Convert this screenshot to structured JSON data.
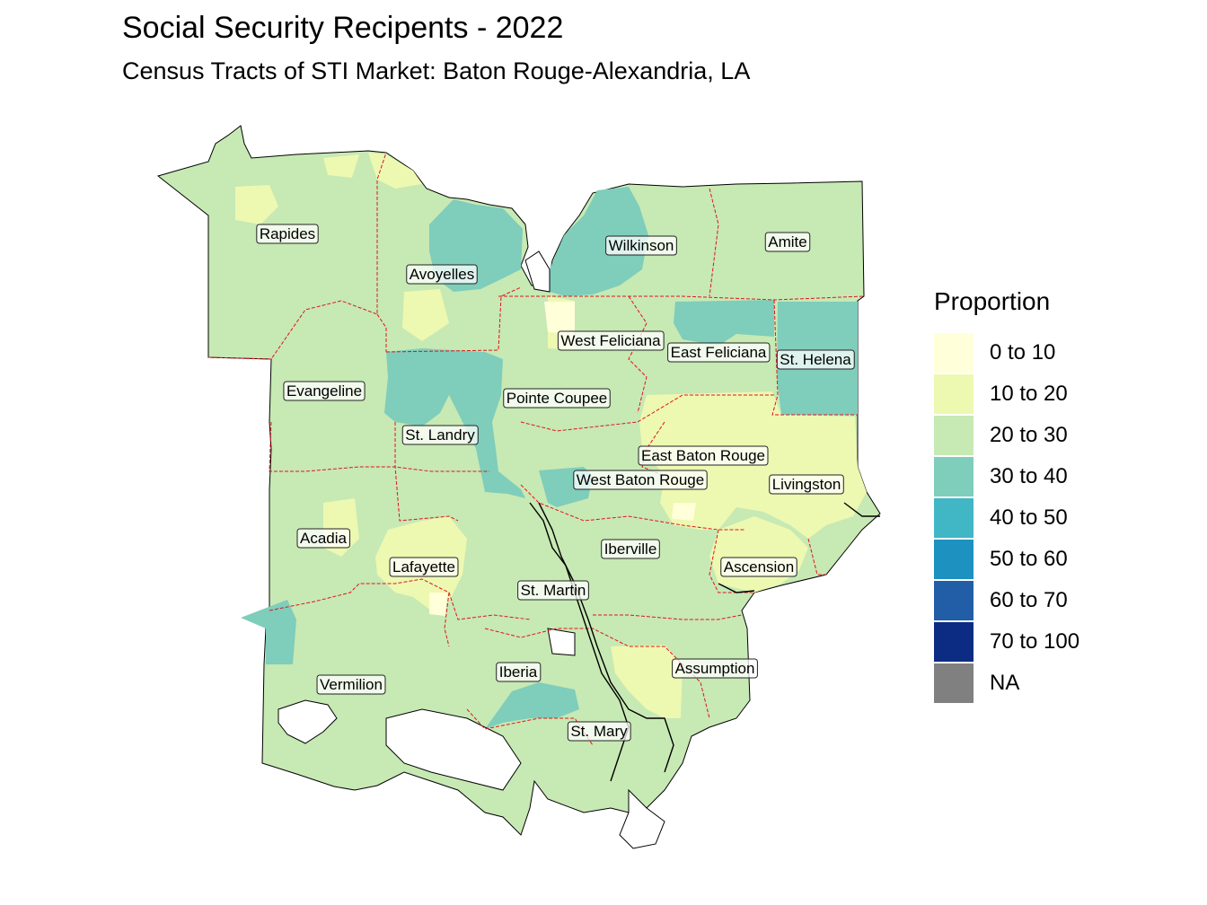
{
  "title": "Social Security Recipents - 2022",
  "subtitle": "Census Tracts of STI Market: Baton Rouge-Alexandria, LA",
  "legend": {
    "title": "Proportion",
    "items": [
      {
        "label": "0 to 10",
        "color": "#ffffd9"
      },
      {
        "label": "10 to 20",
        "color": "#edf8b1"
      },
      {
        "label": "20 to 30",
        "color": "#c7e9b4"
      },
      {
        "label": "30 to 40",
        "color": "#7fcdbb"
      },
      {
        "label": "40 to 50",
        "color": "#41b6c4"
      },
      {
        "label": "50 to 60",
        "color": "#1d91c0"
      },
      {
        "label": "60 to 70",
        "color": "#225ea8"
      },
      {
        "label": "70 to 100",
        "color": "#0c2c84"
      },
      {
        "label": "NA",
        "color": "#808080"
      }
    ]
  },
  "parishes": [
    {
      "name": "Rapides",
      "class": "20 to 30"
    },
    {
      "name": "Avoyelles",
      "class": "20 to 30"
    },
    {
      "name": "Wilkinson",
      "class": "30 to 40"
    },
    {
      "name": "Amite",
      "class": "20 to 30"
    },
    {
      "name": "West Feliciana",
      "class": "20 to 30"
    },
    {
      "name": "East Feliciana",
      "class": "30 to 40"
    },
    {
      "name": "St. Helena",
      "class": "30 to 40"
    },
    {
      "name": "Evangeline",
      "class": "20 to 30"
    },
    {
      "name": "Pointe Coupee",
      "class": "20 to 30"
    },
    {
      "name": "St. Landry",
      "class": "30 to 40"
    },
    {
      "name": "East Baton Rouge",
      "class": "10 to 20"
    },
    {
      "name": "West Baton Rouge",
      "class": "30 to 40"
    },
    {
      "name": "Livingston",
      "class": "10 to 20"
    },
    {
      "name": "Acadia",
      "class": "20 to 30"
    },
    {
      "name": "Iberville",
      "class": "20 to 30"
    },
    {
      "name": "Lafayette",
      "class": "10 to 20"
    },
    {
      "name": "Ascension",
      "class": "10 to 20"
    },
    {
      "name": "St. Martin",
      "class": "20 to 30"
    },
    {
      "name": "Iberia",
      "class": "20 to 30"
    },
    {
      "name": "Assumption",
      "class": "20 to 30"
    },
    {
      "name": "Vermilion",
      "class": "20 to 30"
    },
    {
      "name": "St. Mary",
      "class": "20 to 30"
    }
  ]
}
